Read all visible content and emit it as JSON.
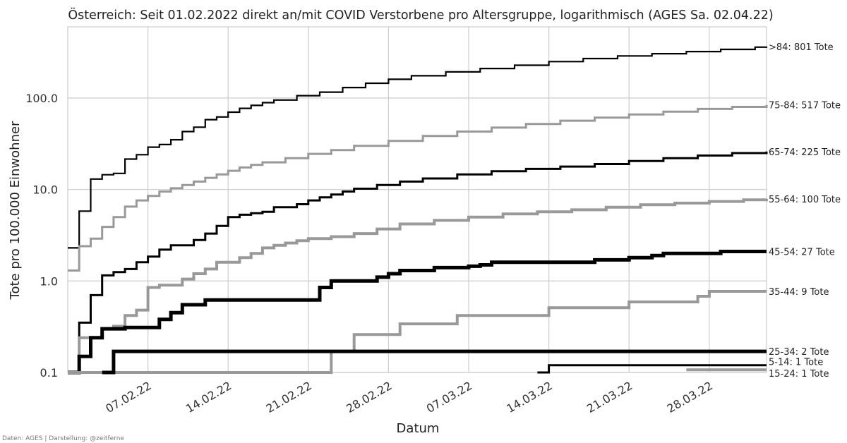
{
  "chart_data": {
    "type": "line",
    "step": "post",
    "title": "Österreich: Seit 01.02.2022 direkt an/mit COVID Verstorbene pro Altersgruppe, logarithmisch (AGES Sa. 02.04.22)",
    "xlabel": "Datum",
    "ylabel": "Tote pro 100.000 Einwohner",
    "yscale": "log",
    "ylim": [
      0.1,
      600
    ],
    "xlim": [
      "2022-01-31",
      "2022-04-02"
    ],
    "grid": true,
    "x_tick_labels": [
      "07.02.22",
      "14.02.22",
      "21.02.22",
      "28.02.22",
      "07.03.22",
      "14.03.22",
      "21.03.22",
      "28.03.22"
    ],
    "x_tick_dates": [
      "2022-02-07",
      "2022-02-14",
      "2022-02-21",
      "2022-02-28",
      "2022-03-07",
      "2022-03-14",
      "2022-03-21",
      "2022-03-28"
    ],
    "y_tick_labels": [
      "0.1",
      "1.0",
      "10.0",
      "100.0"
    ],
    "y_tick_values": [
      0.1,
      1.0,
      10.0,
      100.0
    ],
    "source": "Daten: AGES | Darstellung: @zeitferne",
    "series": [
      {
        "name": ">84: 801 Tote",
        "color": "#000000",
        "stroke": 2.2,
        "points": [
          [
            "2022-01-31",
            2.3
          ],
          [
            "2022-02-01",
            5.8
          ],
          [
            "2022-02-02",
            13
          ],
          [
            "2022-02-03",
            14.5
          ],
          [
            "2022-02-04",
            15
          ],
          [
            "2022-02-05",
            21.5
          ],
          [
            "2022-02-06",
            24
          ],
          [
            "2022-02-07",
            29
          ],
          [
            "2022-02-08",
            31
          ],
          [
            "2022-02-09",
            35
          ],
          [
            "2022-02-10",
            43
          ],
          [
            "2022-02-11",
            48
          ],
          [
            "2022-02-12",
            58
          ],
          [
            "2022-02-13",
            62
          ],
          [
            "2022-02-14",
            70
          ],
          [
            "2022-02-15",
            77
          ],
          [
            "2022-02-16",
            83
          ],
          [
            "2022-02-17",
            89
          ],
          [
            "2022-02-18",
            95
          ],
          [
            "2022-02-20",
            106
          ],
          [
            "2022-02-22",
            116
          ],
          [
            "2022-02-24",
            130
          ],
          [
            "2022-02-26",
            145
          ],
          [
            "2022-02-28",
            160
          ],
          [
            "2022-03-02",
            175
          ],
          [
            "2022-03-05",
            193
          ],
          [
            "2022-03-08",
            210
          ],
          [
            "2022-03-11",
            228
          ],
          [
            "2022-03-14",
            250
          ],
          [
            "2022-03-17",
            270
          ],
          [
            "2022-03-20",
            288
          ],
          [
            "2022-03-23",
            305
          ],
          [
            "2022-03-26",
            322
          ],
          [
            "2022-03-29",
            340
          ],
          [
            "2022-04-01",
            360
          ],
          [
            "2022-04-02",
            365
          ]
        ]
      },
      {
        "name": "75-84: 517 Tote",
        "color": "#999999",
        "stroke": 3,
        "points": [
          [
            "2022-01-31",
            1.3
          ],
          [
            "2022-02-01",
            2.4
          ],
          [
            "2022-02-02",
            2.9
          ],
          [
            "2022-02-03",
            3.9
          ],
          [
            "2022-02-04",
            5
          ],
          [
            "2022-02-05",
            6.5
          ],
          [
            "2022-02-06",
            7.6
          ],
          [
            "2022-02-07",
            8.5
          ],
          [
            "2022-02-08",
            9.5
          ],
          [
            "2022-02-09",
            10.3
          ],
          [
            "2022-02-10",
            11.2
          ],
          [
            "2022-02-11",
            12.2
          ],
          [
            "2022-02-12",
            13.4
          ],
          [
            "2022-02-13",
            14.6
          ],
          [
            "2022-02-14",
            16
          ],
          [
            "2022-02-15",
            17.4
          ],
          [
            "2022-02-16",
            18.6
          ],
          [
            "2022-02-17",
            19.8
          ],
          [
            "2022-02-19",
            22
          ],
          [
            "2022-02-21",
            24.5
          ],
          [
            "2022-02-23",
            27
          ],
          [
            "2022-02-25",
            30
          ],
          [
            "2022-02-28",
            34
          ],
          [
            "2022-03-03",
            38.5
          ],
          [
            "2022-03-06",
            43
          ],
          [
            "2022-03-09",
            47.5
          ],
          [
            "2022-03-12",
            52
          ],
          [
            "2022-03-15",
            56.5
          ],
          [
            "2022-03-18",
            61
          ],
          [
            "2022-03-21",
            66
          ],
          [
            "2022-03-24",
            71
          ],
          [
            "2022-03-27",
            76
          ],
          [
            "2022-03-30",
            80
          ],
          [
            "2022-04-02",
            84
          ]
        ]
      },
      {
        "name": "65-74: 225 Tote",
        "color": "#000000",
        "stroke": 3,
        "points": [
          [
            "2022-01-31",
            0.1
          ],
          [
            "2022-02-01",
            0.35
          ],
          [
            "2022-02-02",
            0.7
          ],
          [
            "2022-02-03",
            1.15
          ],
          [
            "2022-02-04",
            1.25
          ],
          [
            "2022-02-05",
            1.35
          ],
          [
            "2022-02-06",
            1.6
          ],
          [
            "2022-02-07",
            1.85
          ],
          [
            "2022-02-08",
            2.2
          ],
          [
            "2022-02-09",
            2.45
          ],
          [
            "2022-02-11",
            2.8
          ],
          [
            "2022-02-12",
            3.3
          ],
          [
            "2022-02-13",
            4
          ],
          [
            "2022-02-14",
            5
          ],
          [
            "2022-02-15",
            5.3
          ],
          [
            "2022-02-16",
            5.5
          ],
          [
            "2022-02-17",
            5.7
          ],
          [
            "2022-02-18",
            6.4
          ],
          [
            "2022-02-20",
            6.9
          ],
          [
            "2022-02-21",
            7.6
          ],
          [
            "2022-02-22",
            8.2
          ],
          [
            "2022-02-23",
            8.8
          ],
          [
            "2022-02-24",
            9.5
          ],
          [
            "2022-02-25",
            10.2
          ],
          [
            "2022-02-27",
            11.2
          ],
          [
            "2022-03-01",
            12.2
          ],
          [
            "2022-03-03",
            13.2
          ],
          [
            "2022-03-06",
            14.6
          ],
          [
            "2022-03-09",
            15.8
          ],
          [
            "2022-03-12",
            16.8
          ],
          [
            "2022-03-15",
            17.8
          ],
          [
            "2022-03-18",
            19
          ],
          [
            "2022-03-21",
            20.5
          ],
          [
            "2022-03-24",
            22
          ],
          [
            "2022-03-27",
            23.5
          ],
          [
            "2022-03-30",
            25
          ],
          [
            "2022-04-02",
            26
          ]
        ]
      },
      {
        "name": "55-64: 100 Tote",
        "color": "#999999",
        "stroke": 4,
        "points": [
          [
            "2022-01-31",
            0.1
          ],
          [
            "2022-02-01",
            0.24
          ],
          [
            "2022-02-02",
            0.24
          ],
          [
            "2022-02-03",
            0.3
          ],
          [
            "2022-02-04",
            0.32
          ],
          [
            "2022-02-05",
            0.42
          ],
          [
            "2022-02-06",
            0.48
          ],
          [
            "2022-02-07",
            0.85
          ],
          [
            "2022-02-08",
            0.9
          ],
          [
            "2022-02-10",
            1.05
          ],
          [
            "2022-02-11",
            1.2
          ],
          [
            "2022-02-12",
            1.35
          ],
          [
            "2022-02-13",
            1.6
          ],
          [
            "2022-02-15",
            1.8
          ],
          [
            "2022-02-16",
            2.0
          ],
          [
            "2022-02-17",
            2.3
          ],
          [
            "2022-02-18",
            2.45
          ],
          [
            "2022-02-19",
            2.6
          ],
          [
            "2022-02-20",
            2.75
          ],
          [
            "2022-02-21",
            2.9
          ],
          [
            "2022-02-23",
            3.05
          ],
          [
            "2022-02-25",
            3.3
          ],
          [
            "2022-02-27",
            3.7
          ],
          [
            "2022-03-01",
            4.2
          ],
          [
            "2022-03-04",
            4.6
          ],
          [
            "2022-03-07",
            5.0
          ],
          [
            "2022-03-10",
            5.4
          ],
          [
            "2022-03-13",
            5.7
          ],
          [
            "2022-03-16",
            6.0
          ],
          [
            "2022-03-19",
            6.4
          ],
          [
            "2022-03-22",
            6.8
          ],
          [
            "2022-03-25",
            7.1
          ],
          [
            "2022-03-28",
            7.4
          ],
          [
            "2022-03-31",
            7.7
          ],
          [
            "2022-04-02",
            7.9
          ]
        ]
      },
      {
        "name": "45-54: 27 Tote",
        "color": "#000000",
        "stroke": 5,
        "points": [
          [
            "2022-01-31",
            0.1
          ],
          [
            "2022-02-01",
            0.15
          ],
          [
            "2022-02-02",
            0.24
          ],
          [
            "2022-02-03",
            0.3
          ],
          [
            "2022-02-04",
            0.3
          ],
          [
            "2022-02-05",
            0.31
          ],
          [
            "2022-02-07",
            0.31
          ],
          [
            "2022-02-08",
            0.38
          ],
          [
            "2022-02-09",
            0.45
          ],
          [
            "2022-02-10",
            0.55
          ],
          [
            "2022-02-12",
            0.62
          ],
          [
            "2022-02-22",
            0.85
          ],
          [
            "2022-02-23",
            1.0
          ],
          [
            "2022-02-27",
            1.1
          ],
          [
            "2022-02-28",
            1.2
          ],
          [
            "2022-03-01",
            1.3
          ],
          [
            "2022-03-04",
            1.4
          ],
          [
            "2022-03-07",
            1.45
          ],
          [
            "2022-03-08",
            1.5
          ],
          [
            "2022-03-09",
            1.6
          ],
          [
            "2022-03-15",
            1.6
          ],
          [
            "2022-03-18",
            1.7
          ],
          [
            "2022-03-21",
            1.8
          ],
          [
            "2022-03-23",
            1.9
          ],
          [
            "2022-03-24",
            2.0
          ],
          [
            "2022-03-29",
            2.1
          ],
          [
            "2022-04-02",
            2.1
          ]
        ]
      },
      {
        "name": "35-44: 9 Tote",
        "color": "#999999",
        "stroke": 4,
        "points": [
          [
            "2022-01-31",
            0.1
          ],
          [
            "2022-02-22",
            0.1
          ],
          [
            "2022-02-23",
            0.17
          ],
          [
            "2022-02-25",
            0.26
          ],
          [
            "2022-03-01",
            0.34
          ],
          [
            "2022-03-05",
            0.34
          ],
          [
            "2022-03-06",
            0.42
          ],
          [
            "2022-03-13",
            0.42
          ],
          [
            "2022-03-14",
            0.51
          ],
          [
            "2022-03-20",
            0.51
          ],
          [
            "2022-03-21",
            0.59
          ],
          [
            "2022-03-26",
            0.59
          ],
          [
            "2022-03-27",
            0.68
          ],
          [
            "2022-03-28",
            0.77
          ],
          [
            "2022-04-02",
            0.77
          ]
        ]
      },
      {
        "name": "25-34: 2 Tote",
        "color": "#000000",
        "stroke": 5,
        "points": [
          [
            "2022-02-03",
            0.1
          ],
          [
            "2022-02-04",
            0.17
          ],
          [
            "2022-04-02",
            0.17
          ]
        ]
      },
      {
        "name": "5-14: 1 Tote",
        "color": "#000000",
        "stroke": 3,
        "points": [
          [
            "2022-03-13",
            0.1
          ],
          [
            "2022-03-14",
            0.12
          ],
          [
            "2022-04-02",
            0.12
          ]
        ]
      },
      {
        "name": "15-24: 1 Tote",
        "color": "#999999",
        "stroke": 4,
        "points": [
          [
            "2022-03-26",
            0.107
          ],
          [
            "2022-04-02",
            0.107
          ]
        ]
      }
    ]
  }
}
